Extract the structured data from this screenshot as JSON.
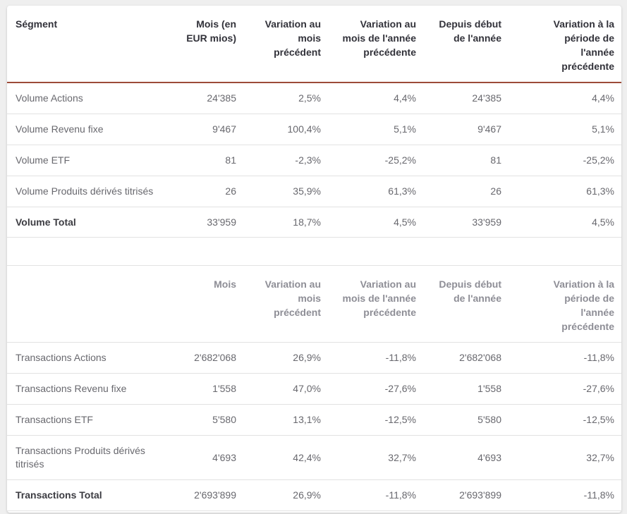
{
  "page": {
    "background": "#efefef"
  },
  "colors": {
    "accent_rule": "#9d4b38",
    "header_text": "#32323a",
    "secondary_header_text": "#8e8e96",
    "body_text": "#68686e",
    "total_text": "#3c3c42",
    "row_border": "#e2e2e2",
    "card_background": "#ffffff"
  },
  "chart_data": [
    {
      "type": "table",
      "columns": [
        "Ségment",
        "Mois (en EUR mios)",
        "Variation au mois précédent",
        "Variation au mois de l'année précédente",
        "Depuis début de l'année",
        "Variation à la période de l'année précédente"
      ],
      "rows": [
        {
          "label": "Volume Actions",
          "values": [
            "24'385",
            "2,5%",
            "4,4%",
            "24'385",
            "4,4%"
          ],
          "bold": false
        },
        {
          "label": "Volume Revenu fixe",
          "values": [
            "9'467",
            "100,4%",
            "5,1%",
            "9'467",
            "5,1%"
          ],
          "bold": false
        },
        {
          "label": "Volume ETF",
          "values": [
            "81",
            "-2,3%",
            "-25,2%",
            "81",
            "-25,2%"
          ],
          "bold": false
        },
        {
          "label": "Volume Produits dérivés titrisés",
          "values": [
            "26",
            "35,9%",
            "61,3%",
            "26",
            "61,3%"
          ],
          "bold": false
        },
        {
          "label": "Volume Total",
          "values": [
            "33'959",
            "18,7%",
            "4,5%",
            "33'959",
            "4,5%"
          ],
          "bold": true
        }
      ]
    },
    {
      "type": "table",
      "columns": [
        "",
        "Mois",
        "Variation au mois précédent",
        "Variation au mois de l'année précédente",
        "Depuis début de l'année",
        "Variation à la période de l'année précédente"
      ],
      "rows": [
        {
          "label": "Transactions Actions",
          "values": [
            "2'682'068",
            "26,9%",
            "-11,8%",
            "2'682'068",
            "-11,8%"
          ],
          "bold": false
        },
        {
          "label": "Transactions Revenu fixe",
          "values": [
            "1'558",
            "47,0%",
            "-27,6%",
            "1'558",
            "-27,6%"
          ],
          "bold": false
        },
        {
          "label": "Transactions ETF",
          "values": [
            "5'580",
            "13,1%",
            "-12,5%",
            "5'580",
            "-12,5%"
          ],
          "bold": false
        },
        {
          "label": "Transactions Produits dérivés titrisés",
          "values": [
            "4'693",
            "42,4%",
            "32,7%",
            "4'693",
            "32,7%"
          ],
          "bold": false
        },
        {
          "label": "Transactions Total",
          "values": [
            "2'693'899",
            "26,9%",
            "-11,8%",
            "2'693'899",
            "-11,8%"
          ],
          "bold": true
        }
      ]
    }
  ]
}
